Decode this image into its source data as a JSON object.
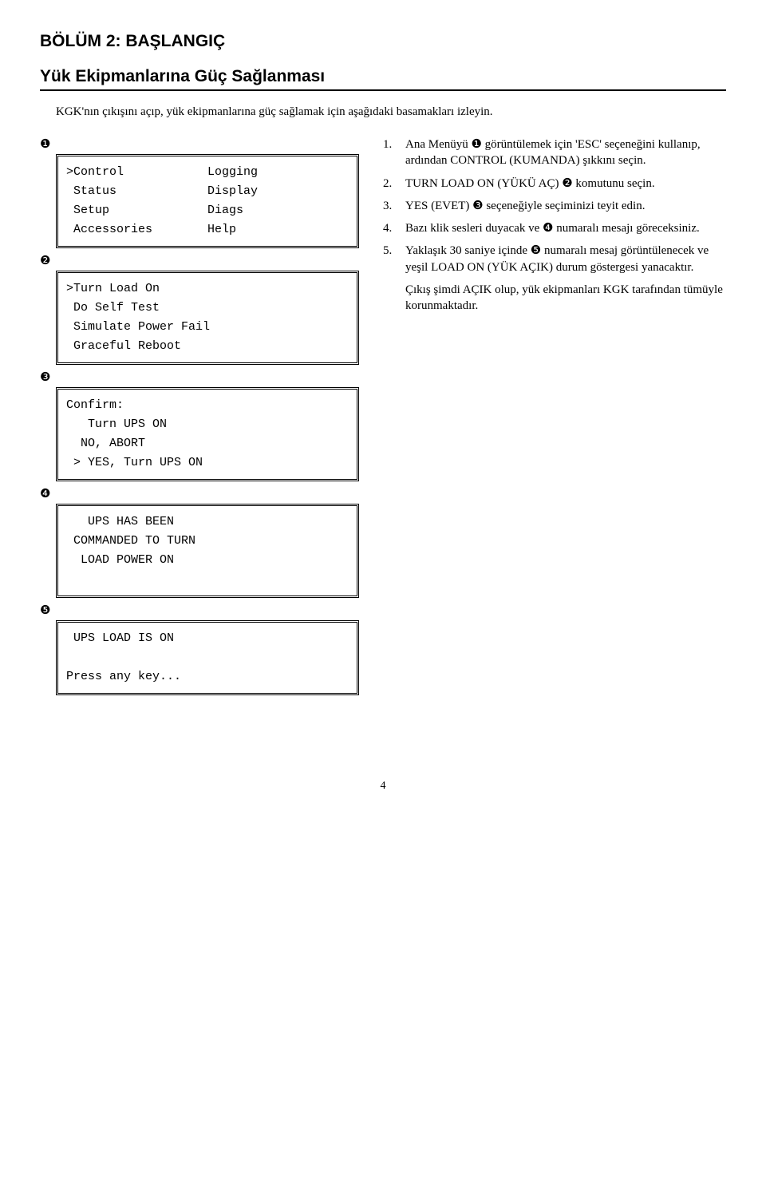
{
  "header": {
    "section": "BÖLÜM 2:  BAŞLANGIÇ",
    "subtitle": "Yük Ekipmanlarına Güç Sağlanması"
  },
  "intro": "KGK'nın çıkışını açıp, yük ekipmanlarına güç sağlamak için aşağıdaki basamakları izleyin.",
  "markers": {
    "m1": "❶",
    "m2": "❷",
    "m3": "❸",
    "m4": "❹",
    "m5": "❺"
  },
  "box1": {
    "leftLines": ">Control\n Status\n Setup\n Accessories",
    "rightLines": "Logging\nDisplay\nDiags\nHelp"
  },
  "box2": ">Turn Load On\n Do Self Test\n Simulate Power Fail\n Graceful Reboot",
  "box3": "Confirm:\n   Turn UPS ON\n  NO, ABORT\n > YES, Turn UPS ON",
  "box4": "   UPS HAS BEEN\n COMMANDED TO TURN\n  LOAD POWER ON\n ",
  "box5": " UPS LOAD IS ON\n\nPress any key...",
  "steps": [
    {
      "num": "1.",
      "body": "Ana Menüyü ❶ görüntülemek için 'ESC' seçeneğini kullanıp, ardından CONTROL (KUMANDA) şıkkını seçin."
    },
    {
      "num": "2.",
      "body": "TURN LOAD ON (YÜKÜ AÇ) ❷ komutunu seçin."
    },
    {
      "num": "3.",
      "body": "YES (EVET) ❸ seçeneğiyle seçiminizi teyit edin."
    },
    {
      "num": "4.",
      "body": "Bazı klik sesleri duyacak ve ❹ numaralı mesajı göreceksiniz."
    },
    {
      "num": "5.",
      "body": "Yaklaşık 30 saniye içinde ❺ numaralı mesaj görüntülenecek ve yeşil LOAD ON (YÜK AÇIK) durum göstergesi yanacaktır."
    }
  ],
  "tail": "Çıkış şimdi AÇIK olup, yük ekipmanları KGK tarafından tümüyle korunmaktadır.",
  "pageNumber": "4"
}
